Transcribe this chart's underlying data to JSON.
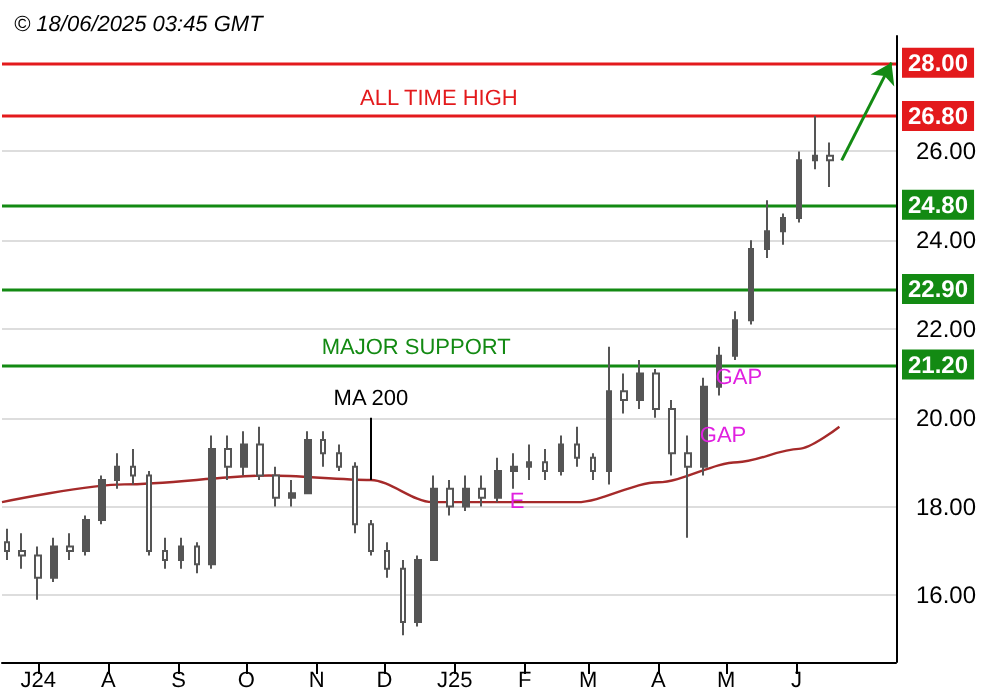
{
  "chart_data": {
    "type": "candlestick",
    "title": "© 18/06/2025 03:45 GMT",
    "x": [
      "2024-06-17",
      "2024-06-24",
      "2024-07-01",
      "2024-07-08",
      "2024-07-15",
      "2024-07-22",
      "2024-07-29",
      "2024-08-05",
      "2024-08-12",
      "2024-08-19",
      "2024-08-26",
      "2024-09-02",
      "2024-09-09",
      "2024-09-16",
      "2024-09-23",
      "2024-09-30",
      "2024-10-07",
      "2024-10-14",
      "2024-10-21",
      "2024-10-28",
      "2024-11-04",
      "2024-11-11",
      "2024-11-18",
      "2024-11-25",
      "2024-12-02",
      "2024-12-09",
      "2024-12-16",
      "2024-12-23",
      "2024-12-30",
      "2025-01-06",
      "2025-01-13",
      "2025-01-20",
      "2025-01-27",
      "2025-02-03",
      "2025-02-10",
      "2025-02-17",
      "2025-02-24",
      "2025-03-03",
      "2025-03-10",
      "2025-03-17",
      "2025-03-24",
      "2025-03-31",
      "2025-04-07",
      "2025-04-14",
      "2025-04-21",
      "2025-04-28",
      "2025-05-05",
      "2025-05-12",
      "2025-05-19",
      "2025-05-26",
      "2025-06-02",
      "2025-06-09",
      "2025-06-16"
    ],
    "ohlc": [
      [
        17.2,
        17.5,
        16.8,
        17.0
      ],
      [
        17.0,
        17.4,
        16.6,
        16.9
      ],
      [
        16.9,
        17.1,
        15.9,
        16.4
      ],
      [
        16.4,
        17.3,
        16.3,
        17.1
      ],
      [
        17.1,
        17.4,
        16.8,
        17.0
      ],
      [
        17.0,
        17.8,
        16.9,
        17.7
      ],
      [
        17.7,
        18.7,
        17.6,
        18.6
      ],
      [
        18.6,
        19.2,
        18.4,
        18.9
      ],
      [
        18.9,
        19.3,
        18.5,
        18.7
      ],
      [
        18.7,
        18.8,
        16.9,
        17.0
      ],
      [
        17.0,
        17.3,
        16.6,
        16.8
      ],
      [
        16.8,
        17.3,
        16.6,
        17.1
      ],
      [
        17.1,
        17.2,
        16.5,
        16.7
      ],
      [
        16.7,
        19.6,
        16.6,
        19.3
      ],
      [
        19.3,
        19.6,
        18.6,
        18.9
      ],
      [
        18.9,
        19.7,
        18.7,
        19.4
      ],
      [
        19.4,
        19.8,
        18.6,
        18.7
      ],
      [
        18.7,
        18.9,
        18.0,
        18.2
      ],
      [
        18.2,
        18.6,
        18.0,
        18.3
      ],
      [
        18.3,
        19.7,
        18.3,
        19.5
      ],
      [
        19.5,
        19.7,
        18.9,
        19.2
      ],
      [
        19.2,
        19.4,
        18.8,
        18.9
      ],
      [
        18.9,
        19.0,
        17.4,
        17.6
      ],
      [
        17.6,
        17.7,
        16.9,
        17.0
      ],
      [
        17.0,
        17.2,
        16.4,
        16.6
      ],
      [
        16.6,
        16.8,
        15.1,
        15.4
      ],
      [
        15.4,
        16.9,
        15.3,
        16.8
      ],
      [
        16.8,
        18.7,
        16.8,
        18.4
      ],
      [
        18.4,
        18.6,
        17.8,
        18.0
      ],
      [
        18.0,
        18.7,
        17.9,
        18.4
      ],
      [
        18.4,
        18.7,
        18.0,
        18.2
      ],
      [
        18.2,
        19.1,
        18.1,
        18.8
      ],
      [
        18.8,
        19.2,
        18.4,
        18.9
      ],
      [
        18.9,
        19.4,
        18.6,
        19.0
      ],
      [
        19.0,
        19.3,
        18.6,
        18.8
      ],
      [
        18.8,
        19.6,
        18.7,
        19.4
      ],
      [
        19.4,
        19.8,
        18.9,
        19.1
      ],
      [
        19.1,
        19.2,
        18.6,
        18.8
      ],
      [
        18.8,
        21.6,
        18.5,
        20.6
      ],
      [
        20.6,
        21.0,
        20.1,
        20.4
      ],
      [
        20.4,
        21.3,
        20.2,
        21.0
      ],
      [
        21.0,
        21.1,
        20.0,
        20.2
      ],
      [
        20.2,
        20.4,
        18.7,
        19.2
      ],
      [
        19.2,
        19.6,
        17.3,
        18.9
      ],
      [
        18.9,
        20.9,
        18.7,
        20.7
      ],
      [
        20.7,
        21.6,
        20.5,
        21.4
      ],
      [
        21.4,
        22.4,
        21.3,
        22.2
      ],
      [
        22.2,
        24.0,
        22.1,
        23.8
      ],
      [
        23.8,
        24.9,
        23.6,
        24.2
      ],
      [
        24.2,
        24.6,
        23.9,
        24.5
      ],
      [
        24.5,
        26.0,
        24.4,
        25.8
      ],
      [
        25.8,
        26.8,
        25.6,
        25.9
      ],
      [
        25.9,
        26.2,
        25.2,
        25.8
      ]
    ],
    "color": "#555555",
    "series": [
      {
        "type": "line",
        "color": "#a52a2a",
        "x": [
          "2024-06-15",
          "2024-08-08",
          "2024-10-11",
          "2024-11-25",
          "2024-12-22",
          "2025-01-18",
          "2025-02-24",
          "2025-04-01",
          "2025-05-06",
          "2025-06-02",
          "2025-06-20"
        ],
        "values": [
          18.1,
          18.5,
          18.7,
          18.6,
          18.1,
          18.1,
          18.1,
          18.55,
          19.0,
          19.3,
          19.8
        ]
      }
    ],
    "xlim": [
      "2024-06-15",
      "2025-07-15"
    ],
    "xticks": [
      {
        "value": "2024-07-01",
        "label": "J24"
      },
      {
        "value": "2024-08-01",
        "label": "A"
      },
      {
        "value": "2024-09-01",
        "label": "S"
      },
      {
        "value": "2024-10-01",
        "label": "O"
      },
      {
        "value": "2024-11-01",
        "label": "N"
      },
      {
        "value": "2024-12-01",
        "label": "D"
      },
      {
        "value": "2025-01-01",
        "label": "J25"
      },
      {
        "value": "2025-02-01",
        "label": "F"
      },
      {
        "value": "2025-03-01",
        "label": "M"
      },
      {
        "value": "2025-04-01",
        "label": "A"
      },
      {
        "value": "2025-05-01",
        "label": "M"
      },
      {
        "value": "2025-06-01",
        "label": "J"
      }
    ],
    "ylim": [
      14.5,
      28.6
    ],
    "yticks": [
      {
        "value": 16,
        "label": "16.00"
      },
      {
        "value": 18,
        "label": "18.00"
      },
      {
        "value": 20,
        "label": "20.00"
      },
      {
        "value": 22,
        "label": "22.00"
      },
      {
        "value": 24,
        "label": "24.00"
      },
      {
        "value": 26,
        "label": "26.00"
      }
    ],
    "grid": "y",
    "ref_lines": [
      {
        "axis": "y",
        "value": 28.0,
        "label": "28.00",
        "color": "#e31a1c"
      },
      {
        "axis": "y",
        "value": 26.8,
        "label": "26.80",
        "color": "#e31a1c"
      },
      {
        "axis": "y",
        "value": 24.8,
        "label": "24.80",
        "color": "#138a13"
      },
      {
        "axis": "y",
        "value": 22.9,
        "label": "22.90",
        "color": "#138a13"
      },
      {
        "axis": "y",
        "value": 21.2,
        "label": "21.20",
        "color": "#138a13"
      }
    ],
    "annotations": [
      {
        "text": "MA 200",
        "x": "2024-11-25",
        "y": 18.6
      },
      {
        "text": "ALL TIME HIGH",
        "x": "2024-12-25",
        "y": 26.8
      },
      {
        "text": "MAJOR SUPPORT",
        "x": "2024-12-15",
        "y": 21.2
      },
      {
        "text": "GAP",
        "x": "2025-04-14",
        "y": 19.6
      },
      {
        "text": "GAP",
        "x": "2025-04-21",
        "y": 20.9
      },
      {
        "text": "E",
        "x": "2025-01-20",
        "y": 18.1
      }
    ]
  }
}
